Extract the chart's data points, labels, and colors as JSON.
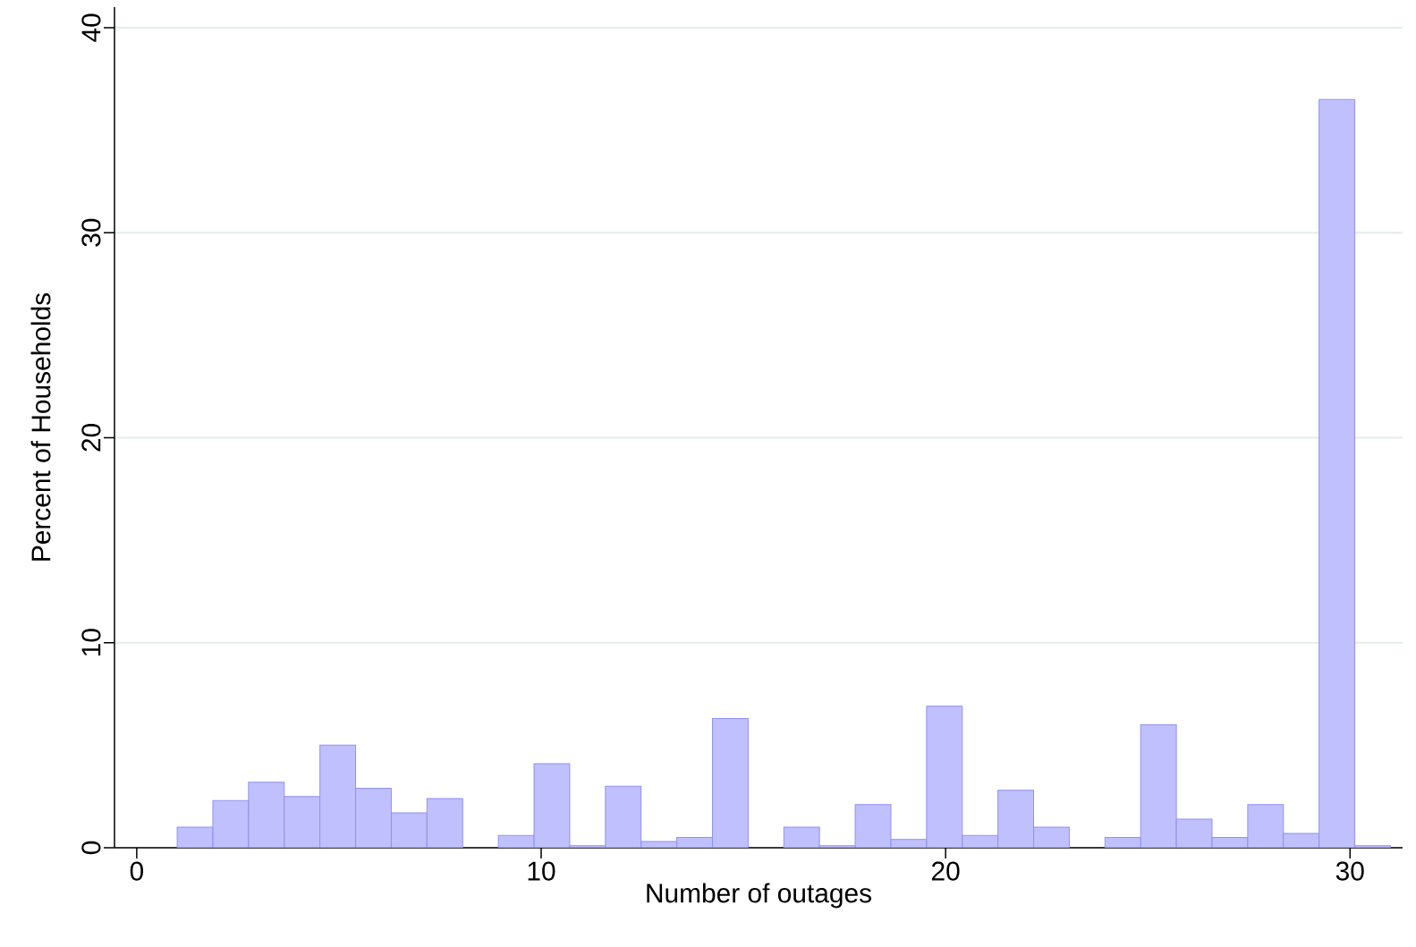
{
  "chart_data": {
    "type": "histogram",
    "xlabel": "Number of outages",
    "ylabel": "Percent of Households",
    "bins": [
      1,
      1.8824,
      2.7647,
      3.6471,
      4.5294,
      5.4118,
      6.2941,
      7.1765,
      8.0588,
      8.9412,
      9.8235,
      10.7059,
      11.5882,
      12.4706,
      13.3529,
      14.2353,
      15.1176,
      16,
      16.8824,
      17.7647,
      18.6471,
      19.5294,
      20.4118,
      21.2941,
      22.1765,
      23.0588,
      23.9412,
      24.8235,
      25.7059,
      26.5882,
      27.4706,
      28.3529,
      29.2353,
      30.1176,
      31
    ],
    "values": [
      1.0,
      2.3,
      3.2,
      2.5,
      5.0,
      2.9,
      1.7,
      2.4,
      0,
      0.6,
      4.1,
      0.1,
      3.0,
      0.3,
      0.5,
      6.3,
      0,
      1.0,
      0.1,
      2.1,
      0.4,
      6.9,
      0.6,
      2.8,
      1.0,
      0,
      0.5,
      6.0,
      1.4,
      0.5,
      2.1,
      0.7,
      36.5,
      0.1
    ],
    "color": "#c0c0ff",
    "xlim": [
      -0.55,
      31.3
    ],
    "ylim": [
      0,
      41
    ],
    "xticks": [
      0,
      10,
      20,
      30
    ],
    "yticks": [
      0,
      10,
      20,
      30,
      40
    ],
    "grid": "y"
  }
}
